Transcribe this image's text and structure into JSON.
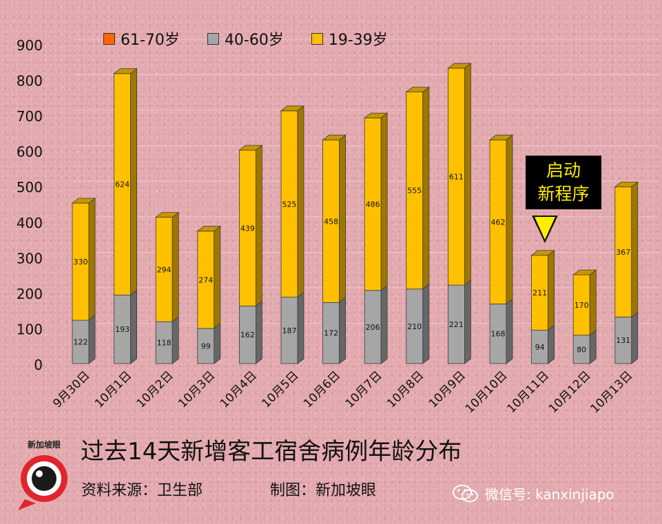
{
  "chart_data": {
    "type": "bar",
    "stacked": true,
    "categories": [
      "9月30日",
      "10月1日",
      "10月2日",
      "10月3日",
      "10月4日",
      "10月5日",
      "10月6日",
      "10月7日",
      "10月8日",
      "10月9日",
      "10月10日",
      "10月11日",
      "10月12日",
      "10月13日"
    ],
    "series": [
      {
        "name": "61-70岁",
        "color": "#ff6600",
        "values": [
          0,
          0,
          0,
          0,
          0,
          0,
          0,
          0,
          0,
          0,
          0,
          0,
          0,
          0
        ]
      },
      {
        "name": "40-60岁",
        "color": "#a6a6a6",
        "values": [
          122,
          193,
          118,
          99,
          162,
          187,
          172,
          206,
          210,
          221,
          168,
          94,
          80,
          131
        ]
      },
      {
        "name": "19-39岁",
        "color": "#ffc000",
        "values": [
          330,
          624,
          294,
          274,
          439,
          525,
          458,
          486,
          555,
          611,
          462,
          211,
          170,
          367
        ]
      }
    ],
    "ylim": [
      0,
      900
    ],
    "yticks": [
      0,
      100,
      200,
      300,
      400,
      500,
      600,
      700,
      800,
      900
    ],
    "legend_position": "top",
    "grid": true,
    "annotation": {
      "lines": [
        "启动",
        "新程序"
      ],
      "category": "10月11日"
    }
  },
  "title": "过去14天新增客工宿舍病例年龄分布",
  "source": "资料来源：卫生部",
  "credit": "制图：新加坡眼",
  "logo_text": "新加坡眼",
  "watermark": "微信号: kanxinjiapo"
}
